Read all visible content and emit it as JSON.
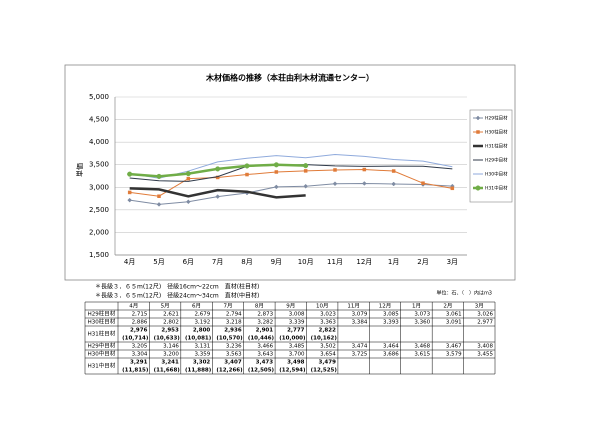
{
  "chart_data": {
    "type": "line",
    "title": "木材価格の推移（本荘由利木材流通センター）",
    "y_label": "単価",
    "categories": [
      "4月",
      "5月",
      "6月",
      "7月",
      "8月",
      "9月",
      "10月",
      "11月",
      "12月",
      "1月",
      "2月",
      "3月"
    ],
    "ylim": [
      1500,
      5000
    ],
    "yticks": [
      {
        "value": 1500,
        "label": "1,500"
      },
      {
        "value": 2000,
        "label": "2,000"
      },
      {
        "value": 2500,
        "label": "2,500"
      },
      {
        "value": 3000,
        "label": "3,000"
      },
      {
        "value": 3500,
        "label": "3,500"
      },
      {
        "value": 4000,
        "label": "4,000"
      },
      {
        "value": 4500,
        "label": "4,500"
      },
      {
        "value": 5000,
        "label": "5,000"
      }
    ],
    "grid": true,
    "legend": "right",
    "series": [
      {
        "name": "H29柱目材",
        "color": "#7f8ca3",
        "marker": "diamond",
        "line_width": 1,
        "values": [
          2715,
          2621,
          2679,
          2794,
          2873,
          3008,
          3023,
          3079,
          3085,
          3073,
          3061,
          3026
        ],
        "value_labels": [
          "2,715",
          "2,621",
          "2,679",
          "2,794",
          "2,873",
          "3,008",
          "3,023",
          "3,079",
          "3,085",
          "3,073",
          "3,061",
          "3,026"
        ]
      },
      {
        "name": "H30柱目材",
        "color": "#e07b39",
        "marker": "square",
        "line_width": 1,
        "values": [
          2886,
          2802,
          3192,
          3218,
          3282,
          3339,
          3363,
          3384,
          3393,
          3360,
          3091,
          2977
        ],
        "value_labels": [
          "2,886",
          "2,802",
          "3,192",
          "3,218",
          "3,282",
          "3,339",
          "3,363",
          "3,384",
          "3,393",
          "3,360",
          "3,091",
          "2,977"
        ]
      },
      {
        "name": "H31柱目材",
        "color": "#333333",
        "marker": "none",
        "line_width": 2.5,
        "values": [
          2976,
          2953,
          2800,
          2936,
          2901,
          2777,
          2822,
          null,
          null,
          null,
          null,
          null
        ],
        "value_labels": [
          "2,976",
          "2,953",
          "2,800",
          "2,936",
          "2,901",
          "2,777",
          "2,822",
          null,
          null,
          null,
          null,
          null
        ],
        "volume_labels": [
          "(10,714)",
          "(10,633)",
          "(10,081)",
          "(10,570)",
          "(10,446)",
          "(10,000)",
          "(10,162)",
          null,
          null,
          null,
          null,
          null
        ]
      },
      {
        "name": "H29中目材",
        "color": "#2f3a4a",
        "marker": "none",
        "line_width": 1,
        "values": [
          3205,
          3146,
          3131,
          3236,
          3466,
          3485,
          3502,
          3474,
          3464,
          3468,
          3467,
          3408
        ],
        "value_labels": [
          "3,205",
          "3,146",
          "3,131",
          "3,236",
          "3,466",
          "3,485",
          "3,502",
          "3,474",
          "3,464",
          "3,468",
          "3,467",
          "3,408"
        ]
      },
      {
        "name": "H30中目材",
        "color": "#8faadc",
        "marker": "none",
        "line_width": 1,
        "values": [
          3304,
          3200,
          3359,
          3563,
          3643,
          3700,
          3654,
          3725,
          3686,
          3615,
          3579,
          3455
        ],
        "value_labels": [
          "3,304",
          "3,200",
          "3,359",
          "3,563",
          "3,643",
          "3,700",
          "3,654",
          "3,725",
          "3,686",
          "3,615",
          "3,579",
          "3,455"
        ]
      },
      {
        "name": "H31中目材",
        "color": "#70ad47",
        "marker": "circle",
        "line_width": 2.5,
        "values": [
          3291,
          3241,
          3302,
          3407,
          3473,
          3498,
          3479,
          null,
          null,
          null,
          null,
          null
        ],
        "value_labels": [
          "3,291",
          "3,241",
          "3,302",
          "3,407",
          "3,473",
          "3,498",
          "3,479",
          null,
          null,
          null,
          null,
          null
        ],
        "volume_labels": [
          "(11,815)",
          "(11,668)",
          "(11,888)",
          "(12,266)",
          "(12,505)",
          "(12,594)",
          "(12,525)",
          null,
          null,
          null,
          null,
          null
        ]
      }
    ],
    "notes": [
      "＊長級３．６５m(12尺)　径級16cm～22cm　直材(柱目材)",
      "＊長級３．６５m(12尺)　径級24cm～34cm　直材(中目材)"
    ],
    "unit_note": "単位：石、（　）内はm3"
  }
}
